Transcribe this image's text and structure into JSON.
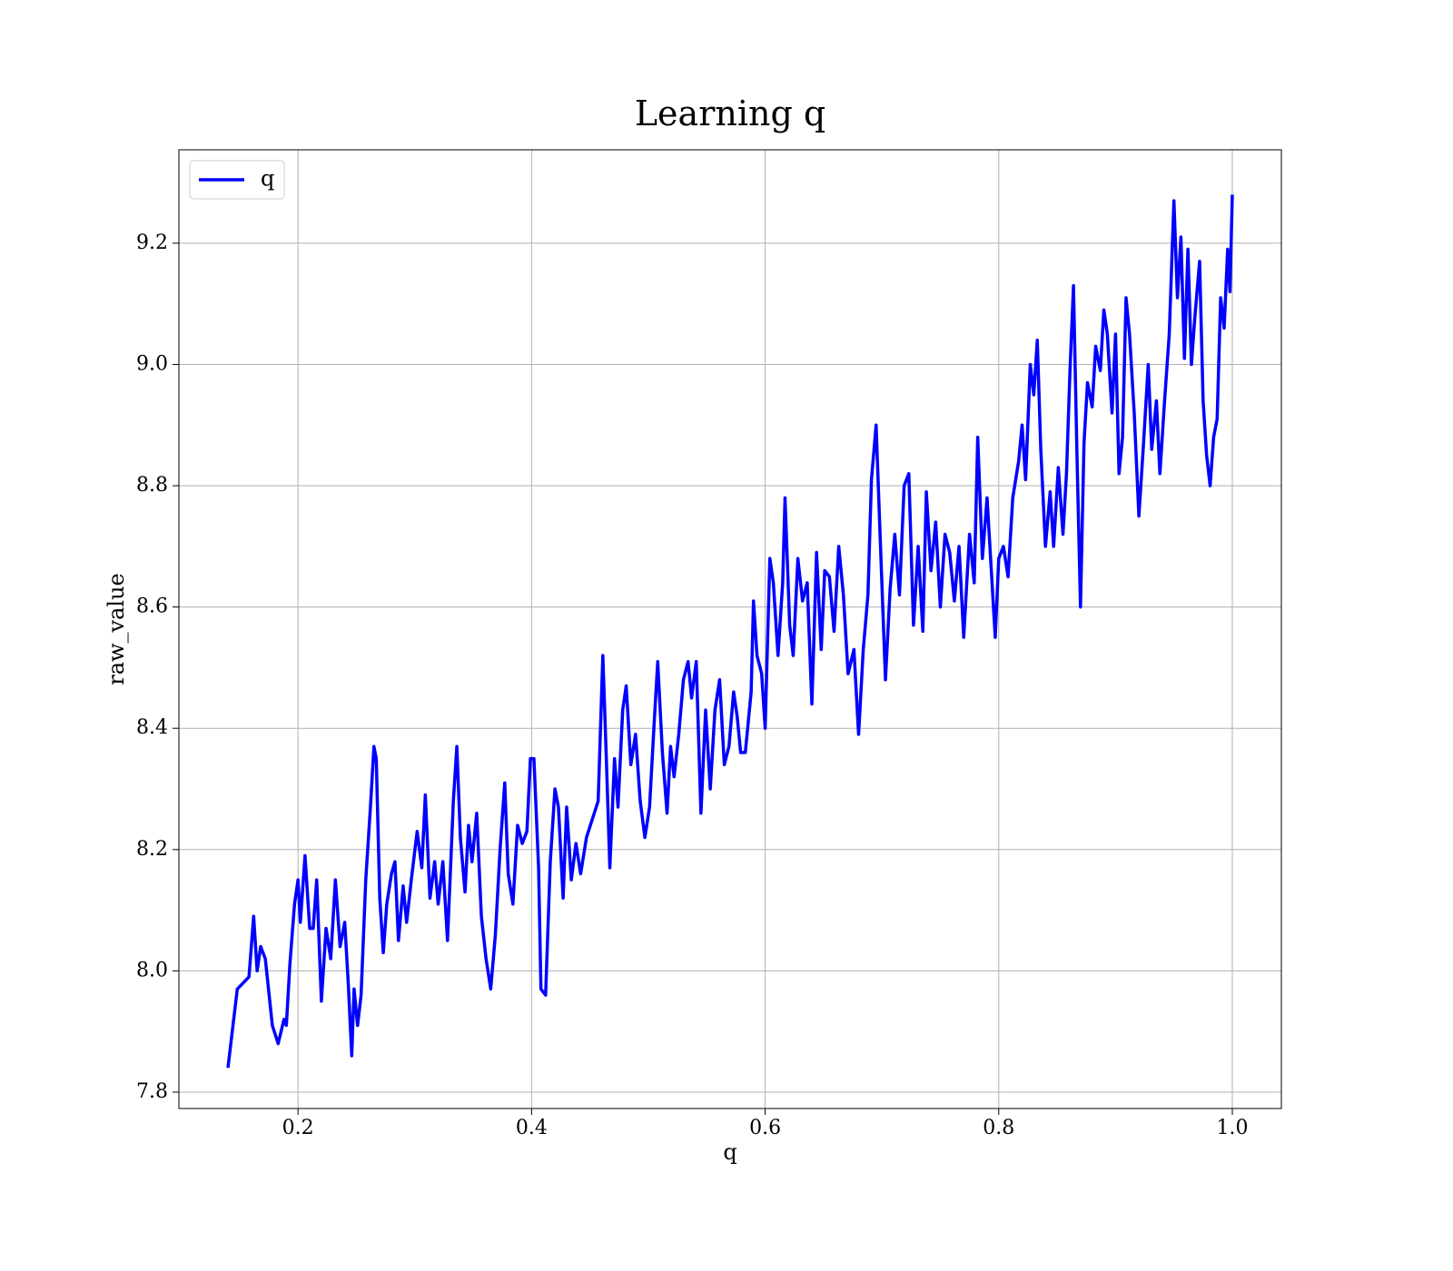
{
  "chart_data": {
    "type": "line",
    "title": "Learning q",
    "xlabel": "q",
    "ylabel": "raw_value",
    "xlim": [
      0.098,
      1.042
    ],
    "ylim": [
      7.773,
      9.354
    ],
    "xticks": [
      0.2,
      0.4,
      0.6,
      0.8,
      {
        "value": 1.0,
        "label": "1.0"
      }
    ],
    "yticks": [
      7.8,
      {
        "value": 8.0,
        "label": "8.0"
      },
      8.2,
      8.4,
      8.6,
      8.8,
      {
        "value": 9.0,
        "label": "9.0"
      },
      9.2
    ],
    "grid": true,
    "legend": "upper left",
    "x": [
      0.14,
      0.148,
      0.158,
      0.162,
      0.165,
      0.168,
      0.172,
      0.178,
      0.183,
      0.188,
      0.19,
      0.193,
      0.197,
      0.2,
      0.202,
      0.206,
      0.21,
      0.213,
      0.216,
      0.22,
      0.224,
      0.228,
      0.232,
      0.236,
      0.24,
      0.243,
      0.246,
      0.248,
      0.251,
      0.254,
      0.258,
      0.262,
      0.265,
      0.267,
      0.27,
      0.273,
      0.276,
      0.28,
      0.283,
      0.286,
      0.29,
      0.293,
      0.297,
      0.302,
      0.306,
      0.309,
      0.313,
      0.317,
      0.32,
      0.324,
      0.328,
      0.333,
      0.336,
      0.339,
      0.343,
      0.346,
      0.349,
      0.353,
      0.357,
      0.361,
      0.365,
      0.369,
      0.373,
      0.377,
      0.38,
      0.384,
      0.388,
      0.392,
      0.396,
      0.399,
      0.402,
      0.406,
      0.408,
      0.412,
      0.416,
      0.42,
      0.423,
      0.427,
      0.43,
      0.434,
      0.438,
      0.442,
      0.447,
      0.452,
      0.457,
      0.461,
      0.464,
      0.467,
      0.471,
      0.474,
      0.478,
      0.481,
      0.485,
      0.489,
      0.493,
      0.497,
      0.501,
      0.505,
      0.508,
      0.512,
      0.516,
      0.519,
      0.522,
      0.526,
      0.53,
      0.534,
      0.537,
      0.541,
      0.545,
      0.549,
      0.553,
      0.557,
      0.561,
      0.565,
      0.569,
      0.573,
      0.576,
      0.579,
      0.583,
      0.588,
      0.59,
      0.593,
      0.597,
      0.6,
      0.604,
      0.607,
      0.611,
      0.615,
      0.617,
      0.621,
      0.624,
      0.628,
      0.632,
      0.636,
      0.64,
      0.644,
      0.648,
      0.651,
      0.655,
      0.659,
      0.663,
      0.667,
      0.671,
      0.676,
      0.68,
      0.684,
      0.688,
      0.691,
      0.695,
      0.698,
      0.703,
      0.707,
      0.711,
      0.715,
      0.719,
      0.723,
      0.727,
      0.731,
      0.735,
      0.738,
      0.742,
      0.746,
      0.75,
      0.754,
      0.758,
      0.762,
      0.766,
      0.77,
      0.775,
      0.779,
      0.782,
      0.786,
      0.79,
      0.797,
      0.8,
      0.804,
      0.808,
      0.812,
      0.817,
      0.82,
      0.823,
      0.827,
      0.83,
      0.833,
      0.836,
      0.84,
      0.844,
      0.847,
      0.851,
      0.855,
      0.858,
      0.861,
      0.864,
      0.867,
      0.87,
      0.873,
      0.876,
      0.88,
      0.883,
      0.887,
      0.89,
      0.893,
      0.897,
      0.9,
      0.903,
      0.906,
      0.909,
      0.912,
      0.916,
      0.92,
      0.924,
      0.928,
      0.931,
      0.935,
      0.938,
      0.942,
      0.946,
      0.95,
      0.953,
      0.956,
      0.959,
      0.962,
      0.965,
      0.968,
      0.972,
      0.975,
      0.978,
      0.981,
      0.984,
      0.987,
      0.99,
      0.993,
      0.996,
      0.998,
      1.0
    ],
    "series": [
      {
        "name": "q",
        "color": "#0000ff",
        "values": [
          7.84,
          7.97,
          7.99,
          8.09,
          8.0,
          8.04,
          8.02,
          7.91,
          7.88,
          7.92,
          7.91,
          8.01,
          8.11,
          8.15,
          8.08,
          8.19,
          8.07,
          8.07,
          8.15,
          7.95,
          8.07,
          8.02,
          8.15,
          8.04,
          8.08,
          7.98,
          7.86,
          7.97,
          7.91,
          7.96,
          8.15,
          8.27,
          8.37,
          8.35,
          8.12,
          8.03,
          8.11,
          8.16,
          8.18,
          8.05,
          8.14,
          8.08,
          8.15,
          8.23,
          8.17,
          8.29,
          8.12,
          8.18,
          8.11,
          8.18,
          8.05,
          8.28,
          8.37,
          8.22,
          8.13,
          8.24,
          8.18,
          8.26,
          8.09,
          8.02,
          7.97,
          8.06,
          8.2,
          8.31,
          8.16,
          8.11,
          8.24,
          8.21,
          8.23,
          8.35,
          8.35,
          8.17,
          7.97,
          7.96,
          8.18,
          8.3,
          8.27,
          8.12,
          8.27,
          8.15,
          8.21,
          8.16,
          8.22,
          8.25,
          8.28,
          8.52,
          8.35,
          8.17,
          8.35,
          8.27,
          8.43,
          8.47,
          8.34,
          8.39,
          8.28,
          8.22,
          8.27,
          8.41,
          8.51,
          8.36,
          8.26,
          8.37,
          8.32,
          8.39,
          8.48,
          8.51,
          8.45,
          8.51,
          8.26,
          8.43,
          8.3,
          8.43,
          8.48,
          8.34,
          8.37,
          8.46,
          8.42,
          8.36,
          8.36,
          8.46,
          8.61,
          8.52,
          8.49,
          8.4,
          8.68,
          8.64,
          8.52,
          8.64,
          8.78,
          8.57,
          8.52,
          8.68,
          8.61,
          8.64,
          8.44,
          8.69,
          8.53,
          8.66,
          8.65,
          8.56,
          8.7,
          8.62,
          8.49,
          8.53,
          8.39,
          8.53,
          8.62,
          8.81,
          8.9,
          8.74,
          8.48,
          8.63,
          8.72,
          8.62,
          8.8,
          8.82,
          8.57,
          8.7,
          8.56,
          8.79,
          8.66,
          8.74,
          8.6,
          8.72,
          8.69,
          8.61,
          8.7,
          8.55,
          8.72,
          8.64,
          8.88,
          8.68,
          8.78,
          8.55,
          8.68,
          8.7,
          8.65,
          8.78,
          8.84,
          8.9,
          8.81,
          9.0,
          8.95,
          9.04,
          8.86,
          8.7,
          8.79,
          8.7,
          8.83,
          8.72,
          8.82,
          8.99,
          9.13,
          8.85,
          8.6,
          8.87,
          8.97,
          8.93,
          9.03,
          8.99,
          9.09,
          9.05,
          8.92,
          9.05,
          8.82,
          8.88,
          9.11,
          9.05,
          8.92,
          8.75,
          8.87,
          9.0,
          8.86,
          8.94,
          8.82,
          8.94,
          9.05,
          9.27,
          9.11,
          9.21,
          9.01,
          9.19,
          9.0,
          9.08,
          9.17,
          8.94,
          8.85,
          8.8,
          8.88,
          8.91,
          9.11,
          9.06,
          9.19,
          9.12,
          9.28
        ]
      }
    ]
  }
}
